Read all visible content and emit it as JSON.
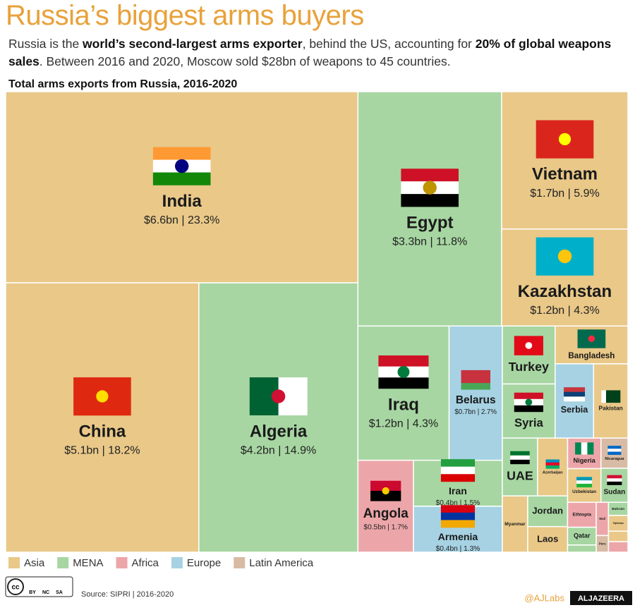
{
  "header": {
    "title": "Russia’s biggest arms buyers",
    "subtitle": [
      {
        "text": "Russia is the "
      },
      {
        "text": "world’s second-largest arms exporter",
        "bold": true
      },
      {
        "text": ", behind the US, accounting for "
      },
      {
        "text": "20% of global weapons sales",
        "bold": true
      },
      {
        "text": ". Between 2016 and 2020, Moscow sold $28bn of weapons to 45 countries."
      }
    ]
  },
  "chart_data": {
    "type": "treemap",
    "title": "Total arms exports from Russia, 2016-2020",
    "series": [
      {
        "name": "Asia",
        "color": "#e9c888",
        "categories": [
          "India",
          "China",
          "Vietnam",
          "Kazakhstan",
          "Bangladesh",
          "Pakistan",
          "Azerbaijan",
          "Uzbekistan",
          "Myanmar",
          "Laos",
          "Tajikistan",
          null
        ],
        "values": [
          6.6,
          5.1,
          1.7,
          1.2,
          0.27,
          0.25,
          0.17,
          0.11,
          0.14,
          0.1,
          0.03,
          0.02
        ],
        "value_labels": [
          "$6.6bn | 23.3%",
          "$5.1bn | 18.2%",
          "$1.7bn | 5.9%",
          "$1.2bn | 4.3%",
          null,
          null,
          null,
          null,
          null,
          null,
          null,
          null
        ]
      },
      {
        "name": "MENA",
        "color": "#a7d6a2",
        "categories": [
          "Algeria",
          "Egypt",
          "Iraq",
          "Iran",
          "Turkey",
          "Syria",
          "UAE",
          "Sudan",
          "Jordan",
          "Qatar",
          "Bahrain",
          null
        ],
        "values": [
          4.2,
          3.3,
          1.2,
          0.4,
          0.3,
          0.28,
          0.2,
          0.09,
          0.12,
          0.05,
          0.025,
          0.02
        ],
        "value_labels": [
          "$4.2bn | 14.9%",
          "$3.3bn | 11.8%",
          "$1.2bn | 4.3%",
          "$0.4bn | 1.5%",
          null,
          null,
          null,
          null,
          null,
          null,
          null,
          null
        ]
      },
      {
        "name": "Africa",
        "color": "#eca6a9",
        "categories": [
          "Angola",
          "Nigeria",
          "Ethiopia",
          "Mali",
          null
        ],
        "values": [
          0.5,
          0.1,
          0.07,
          0.04,
          0.02
        ],
        "value_labels": [
          "$0.5bn | 1.7%",
          null,
          null,
          null,
          null
        ]
      },
      {
        "name": "Europe",
        "color": "#a6d2e3",
        "categories": [
          "Belarus",
          "Armenia",
          "Serbia"
        ],
        "values": [
          0.7,
          0.4,
          0.28
        ],
        "value_labels": [
          "$0.7bn | 2.7%",
          "$0.4bn | 1.3%",
          null
        ]
      },
      {
        "name": "Latin America",
        "color": "#d8bba4",
        "categories": [
          "Nicaragua",
          "Peru"
        ],
        "values": [
          0.08,
          0.02
        ],
        "value_labels": [
          null,
          null
        ]
      }
    ]
  },
  "footer": {
    "license": [
      "BY",
      "NC",
      "SA"
    ],
    "source": "Source: SIPRI | 2016-2020",
    "credit": "@AJLabs",
    "logo": "ALJAZEERA"
  }
}
